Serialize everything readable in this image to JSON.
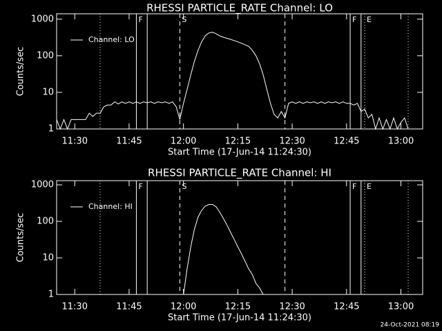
{
  "chart_data": [
    {
      "type": "line",
      "title": "RHESSI PARTICLE_RATE Channel: LO",
      "xlabel": "Start Time (17-Jun-14 11:24:30)",
      "ylabel": "Counts/sec",
      "xlim": [
        "11:25",
        "13:06"
      ],
      "xticks": [
        "11:30",
        "11:45",
        "12:00",
        "12:15",
        "12:30",
        "12:45",
        "13:00"
      ],
      "ylim": [
        1,
        1400
      ],
      "yticks": [
        1,
        10,
        100,
        1000
      ],
      "log_y": true,
      "legend": "upper left",
      "series": [
        {
          "name": "Channel: LO",
          "color": "#ffffff",
          "x": [
            "11:25",
            "11:26",
            "11:27",
            "11:28",
            "11:29",
            "11:30",
            "11:31",
            "11:32",
            "11:33",
            "11:34",
            "11:35",
            "11:36",
            "11:37",
            "11:38",
            "11:39",
            "11:40",
            "11:41",
            "11:42",
            "11:43",
            "11:44",
            "11:45",
            "11:46",
            "11:47",
            "11:48",
            "11:49",
            "11:50",
            "11:51",
            "11:52",
            "11:53",
            "11:54",
            "11:55",
            "11:56",
            "11:57",
            "11:58",
            "11:59",
            "12:00",
            "12:01",
            "12:02",
            "12:03",
            "12:04",
            "12:05",
            "12:06",
            "12:07",
            "12:08",
            "12:09",
            "12:10",
            "12:11",
            "12:12",
            "12:13",
            "12:14",
            "12:15",
            "12:16",
            "12:17",
            "12:18",
            "12:19",
            "12:20",
            "12:21",
            "12:22",
            "12:23",
            "12:24",
            "12:25",
            "12:26",
            "12:27",
            "12:28",
            "12:29",
            "12:30",
            "12:31",
            "12:32",
            "12:33",
            "12:34",
            "12:35",
            "12:36",
            "12:37",
            "12:38",
            "12:39",
            "12:40",
            "12:41",
            "12:42",
            "12:43",
            "12:44",
            "12:45",
            "12:46",
            "12:47",
            "12:48",
            "12:49",
            "12:50",
            "12:51",
            "12:52",
            "12:53",
            "12:54",
            "12:55",
            "12:56",
            "12:57",
            "12:58",
            "12:59",
            "13:00",
            "13:01",
            "13:02"
          ],
          "values": [
            1.8,
            1,
            1.8,
            1,
            1.8,
            1.8,
            1.8,
            1.8,
            1.8,
            2.7,
            2.2,
            2.7,
            2.7,
            4,
            4.5,
            4.5,
            5.5,
            4.8,
            5.5,
            5,
            5.5,
            5,
            5.5,
            5,
            5.5,
            5.2,
            5.5,
            5,
            5.5,
            5.2,
            5.5,
            5,
            5.5,
            4,
            1.8,
            5,
            12,
            30,
            70,
            140,
            240,
            350,
            420,
            440,
            400,
            350,
            320,
            300,
            280,
            260,
            240,
            220,
            200,
            180,
            140,
            100,
            60,
            30,
            12,
            5,
            2.5,
            2,
            3,
            2,
            5,
            5.5,
            5,
            5.5,
            5,
            5.5,
            5.2,
            5.5,
            5,
            5.5,
            5,
            5.5,
            5.2,
            5.5,
            5,
            5.5,
            5,
            5,
            4.5,
            5,
            3,
            3.5,
            2,
            2.5,
            1,
            2,
            1,
            1.8,
            1,
            2,
            1,
            1.5,
            2,
            1
          ]
        }
      ],
      "vlines": [
        {
          "x": "11:37",
          "style": "dotted"
        },
        {
          "x": "11:47",
          "style": "solid",
          "label": "F"
        },
        {
          "x": "11:50",
          "style": "solid"
        },
        {
          "x": "11:59",
          "style": "dashed",
          "label": "S"
        },
        {
          "x": "12:28",
          "style": "dashed"
        },
        {
          "x": "12:46",
          "style": "solid",
          "label": "F"
        },
        {
          "x": "12:49",
          "style": "solid"
        },
        {
          "x": "12:50",
          "style": "dotted",
          "label": "E"
        },
        {
          "x": "13:02",
          "style": "dotted"
        }
      ]
    },
    {
      "type": "line",
      "title": "RHESSI PARTICLE_RATE Channel: HI",
      "xlabel": "Start Time (17-Jun-14 11:24:30)",
      "ylabel": "Counts/sec",
      "xlim": [
        "11:25",
        "13:06"
      ],
      "xticks": [
        "11:30",
        "11:45",
        "12:00",
        "12:15",
        "12:30",
        "12:45",
        "13:00"
      ],
      "ylim": [
        1,
        1300
      ],
      "yticks": [
        1,
        10,
        100,
        1000
      ],
      "log_y": true,
      "legend": "upper left",
      "series": [
        {
          "name": "Channel: HI",
          "color": "#ffffff",
          "x": [
            "12:00",
            "12:01",
            "12:02",
            "12:03",
            "12:04",
            "12:05",
            "12:06",
            "12:07",
            "12:08",
            "12:09",
            "12:10",
            "12:11",
            "12:12",
            "12:13",
            "12:14",
            "12:15",
            "12:16",
            "12:17",
            "12:18",
            "12:19",
            "12:20",
            "12:21",
            "12:22"
          ],
          "values": [
            1,
            5,
            20,
            60,
            130,
            200,
            260,
            290,
            290,
            250,
            180,
            120,
            80,
            50,
            32,
            20,
            13,
            8,
            5,
            3.5,
            2,
            1.5,
            1
          ]
        }
      ],
      "vlines": [
        {
          "x": "11:37",
          "style": "dotted"
        },
        {
          "x": "11:47",
          "style": "solid",
          "label": "F"
        },
        {
          "x": "11:50",
          "style": "solid"
        },
        {
          "x": "11:59",
          "style": "dashed",
          "label": "S"
        },
        {
          "x": "12:28",
          "style": "dashed"
        },
        {
          "x": "12:46",
          "style": "solid",
          "label": "F"
        },
        {
          "x": "12:49",
          "style": "solid"
        },
        {
          "x": "12:50",
          "style": "dotted",
          "label": "E"
        },
        {
          "x": "13:02",
          "style": "dotted"
        }
      ]
    }
  ],
  "footer": "24-Oct-2021 08:19"
}
